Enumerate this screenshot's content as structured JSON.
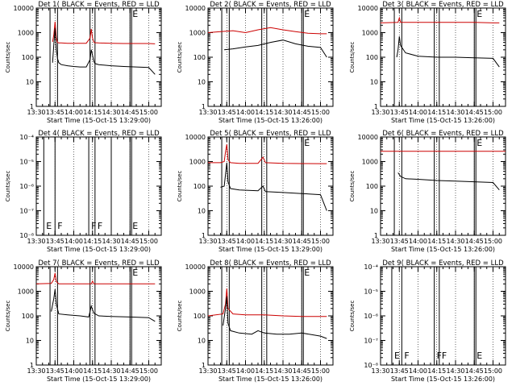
{
  "chart_data": [
    {
      "type": "line",
      "title": "Det 1( BLACK = Events, RED = LLD",
      "xlabel": "Start Time (15-Oct-15 13:29:00)",
      "ylabel": "Counts/sec",
      "xlim": [
        "13:30",
        "15:10"
      ],
      "ylim": [
        1,
        10000
      ],
      "yscale": "log",
      "yticks": [
        "1",
        "10",
        "100",
        "1000",
        "10000"
      ],
      "xticks": [
        "13:30",
        "13:45",
        "14:00",
        "14:15",
        "14:30",
        "14:45",
        "15:00"
      ],
      "markers": [
        {
          "x": "13:41",
          "label": "",
          "double": false
        },
        {
          "x": "13:47",
          "label": "",
          "double": false
        },
        {
          "x": "14:13",
          "label": "",
          "double": false
        },
        {
          "x": "14:17",
          "label": "",
          "double": false
        },
        {
          "x": "14:45",
          "label": "E",
          "double": true
        }
      ],
      "series": [
        {
          "name": "RED = LLD",
          "color": "#cc0000",
          "x": [
            "13:43",
            "13:44",
            "13:45",
            "13:46",
            "13:47",
            "13:48",
            "13:50",
            "13:55",
            "14:00",
            "14:05",
            "14:10",
            "14:13",
            "14:14",
            "14:15",
            "14:16",
            "14:17",
            "14:20",
            "14:30",
            "14:40",
            "14:50",
            "15:00",
            "15:05"
          ],
          "y": [
            420,
            800,
            2800,
            600,
            400,
            380,
            380,
            370,
            370,
            370,
            370,
            600,
            1400,
            600,
            420,
            390,
            380,
            370,
            360,
            360,
            360,
            350
          ]
        },
        {
          "name": "BLACK = Events",
          "color": "#000000",
          "x": [
            "13:43",
            "13:44",
            "13:45",
            "13:46",
            "13:47",
            "13:48",
            "13:50",
            "13:55",
            "14:00",
            "14:05",
            "14:10",
            "14:13",
            "14:14",
            "14:15",
            "14:16",
            "14:17",
            "14:20",
            "14:30",
            "14:40",
            "14:50",
            "15:00",
            "15:05"
          ],
          "y": [
            60,
            300,
            1500,
            200,
            90,
            60,
            50,
            45,
            42,
            40,
            40,
            80,
            200,
            120,
            70,
            55,
            50,
            45,
            42,
            40,
            38,
            20
          ]
        }
      ]
    },
    {
      "type": "line",
      "title": "Det 2( BLACK = Events, RED = LLD",
      "xlabel": "Start Time (15-Oct-15 13:26:00)",
      "ylabel": "Counts/sec",
      "xlim": [
        "13:30",
        "15:10"
      ],
      "ylim": [
        1,
        10000
      ],
      "yscale": "log",
      "yticks": [
        "1",
        "10",
        "100",
        "1000",
        "10000"
      ],
      "xticks": [
        "13:30",
        "13:45",
        "14:00",
        "14:15",
        "14:30",
        "14:45",
        "15:00"
      ],
      "markers": [
        {
          "x": "13:41",
          "label": "",
          "double": false
        },
        {
          "x": "13:47",
          "label": "",
          "double": false
        },
        {
          "x": "14:13",
          "label": "",
          "double": false
        },
        {
          "x": "14:17",
          "label": "",
          "double": false
        },
        {
          "x": "14:45",
          "label": "E",
          "double": true
        }
      ],
      "series": [
        {
          "name": "RED = LLD",
          "color": "#cc0000",
          "x": [
            "13:30",
            "13:40",
            "13:50",
            "14:00",
            "14:10",
            "14:20",
            "14:30",
            "14:40",
            "14:50",
            "15:00",
            "15:05"
          ],
          "y": [
            1000,
            1100,
            1200,
            1000,
            1300,
            1600,
            1300,
            1100,
            950,
            900,
            900
          ]
        },
        {
          "name": "BLACK = Events",
          "color": "#000000",
          "x": [
            "13:43",
            "13:50",
            "14:00",
            "14:10",
            "14:20",
            "14:30",
            "14:40",
            "14:50",
            "15:00",
            "15:05"
          ],
          "y": [
            200,
            220,
            260,
            300,
            400,
            500,
            350,
            280,
            250,
            100
          ]
        }
      ]
    },
    {
      "type": "line",
      "title": "Det 3( BLACK = Events, RED = LLD",
      "xlabel": "Start Time (15-Oct-15 13:26:00)",
      "ylabel": "Counts/sec",
      "xlim": [
        "13:30",
        "15:10"
      ],
      "ylim": [
        1,
        10000
      ],
      "yscale": "log",
      "yticks": [
        "1",
        "10",
        "100",
        "1000",
        "10000"
      ],
      "xticks": [
        "13:30",
        "13:45",
        "14:00",
        "14:15",
        "14:30",
        "14:45",
        "15:00"
      ],
      "markers": [
        {
          "x": "13:41",
          "label": "",
          "double": false
        },
        {
          "x": "13:47",
          "label": "",
          "double": false
        },
        {
          "x": "14:13",
          "label": "",
          "double": false
        },
        {
          "x": "14:17",
          "label": "",
          "double": false
        },
        {
          "x": "14:45",
          "label": "E",
          "double": true
        }
      ],
      "series": [
        {
          "name": "RED = LLD",
          "color": "#cc0000",
          "x": [
            "13:30",
            "13:44",
            "13:45",
            "13:46",
            "14:00",
            "14:15",
            "14:30",
            "14:45",
            "15:00",
            "15:05"
          ],
          "y": [
            2500,
            2600,
            4000,
            2600,
            2600,
            2600,
            2600,
            2600,
            2500,
            2500
          ]
        },
        {
          "name": "BLACK = Events",
          "color": "#000000",
          "x": [
            "13:43",
            "13:44",
            "13:45",
            "13:46",
            "13:50",
            "14:00",
            "14:15",
            "14:30",
            "14:45",
            "15:00",
            "15:05"
          ],
          "y": [
            100,
            200,
            700,
            300,
            150,
            110,
            100,
            100,
            95,
            90,
            40
          ]
        }
      ]
    },
    {
      "type": "line",
      "title": "Det 4( BLACK = Events, RED = LLD",
      "xlabel": "Start Time (15-Oct-15 13:29:00)",
      "ylabel": "Counts/sec",
      "xlim": [
        "13:30",
        "15:10"
      ],
      "ylim": [
        1e-08,
        0.0001
      ],
      "yscale": "log",
      "yticks": [
        "10⁻⁸",
        "10⁻⁷",
        "10⁻⁶",
        "10⁻⁵",
        "10⁻⁴"
      ],
      "xticks": [
        "13:30",
        "13:45",
        "14:00",
        "14:15",
        "14:30",
        "14:45",
        "15:00"
      ],
      "markers": [
        {
          "x": "13:36",
          "label": "E",
          "double": false
        },
        {
          "x": "13:45",
          "label": "F",
          "double": false
        },
        {
          "x": "14:12",
          "label": "F",
          "double": false
        },
        {
          "x": "14:17",
          "label": "F",
          "double": false
        },
        {
          "x": "14:30",
          "label": "",
          "double": false
        },
        {
          "x": "14:45",
          "label": "E",
          "double": true
        }
      ],
      "series": []
    },
    {
      "type": "line",
      "title": "Det 5( BLACK = Events, RED = LLD",
      "xlabel": "Start Time (15-Oct-15 13:29:00)",
      "ylabel": "Counts/sec",
      "xlim": [
        "13:30",
        "15:10"
      ],
      "ylim": [
        1,
        10000
      ],
      "yscale": "log",
      "yticks": [
        "1",
        "10",
        "100",
        "1000",
        "10000"
      ],
      "xticks": [
        "13:30",
        "13:45",
        "14:00",
        "14:15",
        "14:30",
        "14:45",
        "15:00"
      ],
      "markers": [
        {
          "x": "13:41",
          "label": "",
          "double": false
        },
        {
          "x": "13:47",
          "label": "",
          "double": false
        },
        {
          "x": "14:13",
          "label": "",
          "double": false
        },
        {
          "x": "14:17",
          "label": "",
          "double": false
        },
        {
          "x": "14:45",
          "label": "E",
          "double": true
        }
      ],
      "series": [
        {
          "name": "RED = LLD",
          "color": "#cc0000",
          "x": [
            "13:30",
            "13:40",
            "13:43",
            "13:44",
            "13:45",
            "13:46",
            "13:48",
            "13:55",
            "14:10",
            "14:14",
            "14:16",
            "14:30",
            "14:45",
            "15:00",
            "15:05"
          ],
          "y": [
            900,
            900,
            1000,
            2500,
            5000,
            1200,
            900,
            850,
            850,
            1500,
            900,
            850,
            830,
            820,
            820
          ]
        },
        {
          "name": "BLACK = Events",
          "color": "#000000",
          "x": [
            "13:40",
            "13:43",
            "13:44",
            "13:45",
            "13:46",
            "13:48",
            "13:55",
            "14:10",
            "14:14",
            "14:16",
            "14:30",
            "14:45",
            "15:00",
            "15:05"
          ],
          "y": [
            90,
            100,
            300,
            900,
            150,
            80,
            70,
            65,
            100,
            60,
            55,
            50,
            45,
            10
          ]
        }
      ]
    },
    {
      "type": "line",
      "title": "Det 6( BLACK = Events, RED = LLD",
      "xlabel": "Start Time (15-Oct-15 13:26:00)",
      "ylabel": "Counts/sec",
      "xlim": [
        "13:30",
        "15:10"
      ],
      "ylim": [
        1,
        10000
      ],
      "yscale": "log",
      "yticks": [
        "1",
        "10",
        "100",
        "1000",
        "10000"
      ],
      "xticks": [
        "13:30",
        "13:45",
        "14:00",
        "14:15",
        "14:30",
        "14:45",
        "15:00"
      ],
      "markers": [
        {
          "x": "13:41",
          "label": "",
          "double": false
        },
        {
          "x": "13:47",
          "label": "",
          "double": false
        },
        {
          "x": "14:13",
          "label": "",
          "double": false
        },
        {
          "x": "14:17",
          "label": "",
          "double": false
        },
        {
          "x": "14:45",
          "label": "E",
          "double": true
        }
      ],
      "series": [
        {
          "name": "RED = LLD",
          "color": "#cc0000",
          "x": [
            "13:30",
            "14:00",
            "14:30",
            "15:00",
            "15:10"
          ],
          "y": [
            2600,
            2600,
            2600,
            2600,
            2600
          ]
        },
        {
          "name": "BLACK = Events",
          "color": "#000000",
          "x": [
            "13:44",
            "13:46",
            "13:50",
            "14:00",
            "14:15",
            "14:30",
            "14:45",
            "15:00",
            "15:05"
          ],
          "y": [
            350,
            250,
            200,
            190,
            170,
            160,
            150,
            140,
            70
          ]
        }
      ]
    },
    {
      "type": "line",
      "title": "Det 7( BLACK = Events, RED = LLD",
      "xlabel": "Start Time (15-Oct-15 13:29:00)",
      "ylabel": "Counts/sec",
      "xlim": [
        "13:30",
        "15:10"
      ],
      "ylim": [
        1,
        10000
      ],
      "yscale": "log",
      "yticks": [
        "1",
        "10",
        "100",
        "1000",
        "10000"
      ],
      "xticks": [
        "13:30",
        "13:45",
        "14:00",
        "14:15",
        "14:30",
        "14:45",
        "15:00"
      ],
      "markers": [
        {
          "x": "13:41",
          "label": "",
          "double": false
        },
        {
          "x": "13:47",
          "label": "",
          "double": false
        },
        {
          "x": "14:13",
          "label": "",
          "double": false
        },
        {
          "x": "14:17",
          "label": "",
          "double": false
        },
        {
          "x": "14:45",
          "label": "E",
          "double": true
        }
      ],
      "series": [
        {
          "name": "RED = LLD",
          "color": "#cc0000",
          "x": [
            "13:30",
            "13:42",
            "13:44",
            "13:45",
            "13:46",
            "13:48",
            "14:00",
            "14:14",
            "14:15",
            "14:16",
            "14:30",
            "14:45",
            "15:00",
            "15:05"
          ],
          "y": [
            2000,
            2100,
            3000,
            5500,
            2500,
            2000,
            2000,
            2000,
            2600,
            2000,
            2000,
            2000,
            2000,
            2000
          ]
        },
        {
          "name": "BLACK = Events",
          "color": "#000000",
          "x": [
            "13:42",
            "13:44",
            "13:45",
            "13:46",
            "13:48",
            "13:55",
            "14:05",
            "14:12",
            "14:14",
            "14:16",
            "14:20",
            "14:30",
            "14:45",
            "15:00",
            "15:05"
          ],
          "y": [
            150,
            500,
            1200,
            300,
            120,
            110,
            100,
            90,
            250,
            130,
            100,
            95,
            90,
            85,
            60
          ]
        }
      ]
    },
    {
      "type": "line",
      "title": "Det 8( BLACK = Events, RED = LLD",
      "xlabel": "Start Time (15-Oct-15 13:26:00)",
      "ylabel": "Counts/sec",
      "xlim": [
        "13:30",
        "15:10"
      ],
      "ylim": [
        1,
        10000
      ],
      "yscale": "log",
      "yticks": [
        "1",
        "10",
        "100",
        "1000",
        "10000"
      ],
      "xticks": [
        "13:30",
        "13:45",
        "14:00",
        "14:15",
        "14:30",
        "14:45",
        "15:00"
      ],
      "markers": [
        {
          "x": "13:41",
          "label": "",
          "double": false
        },
        {
          "x": "13:47",
          "label": "",
          "double": false
        },
        {
          "x": "14:13",
          "label": "",
          "double": false
        },
        {
          "x": "14:17",
          "label": "",
          "double": false
        },
        {
          "x": "14:45",
          "label": "E",
          "double": true
        }
      ],
      "series": [
        {
          "name": "RED = LLD",
          "color": "#cc0000",
          "x": [
            "13:30",
            "13:42",
            "13:44",
            "13:45",
            "13:46",
            "13:50",
            "14:00",
            "14:15",
            "14:30",
            "14:45",
            "15:00",
            "15:05"
          ],
          "y": [
            100,
            120,
            300,
            1300,
            200,
            120,
            110,
            110,
            100,
            95,
            95,
            95
          ]
        },
        {
          "name": "BLACK = Events",
          "color": "#000000",
          "x": [
            "13:42",
            "13:44",
            "13:45",
            "13:46",
            "13:48",
            "13:55",
            "14:05",
            "14:10",
            "14:15",
            "14:25",
            "14:35",
            "14:45",
            "15:00",
            "15:05"
          ],
          "y": [
            40,
            200,
            600,
            50,
            25,
            20,
            18,
            25,
            20,
            18,
            18,
            20,
            15,
            12
          ]
        }
      ]
    },
    {
      "type": "line",
      "title": "Det 9( BLACK = Events, RED = LLD",
      "xlabel": "Start Time (15-Oct-15 13:26:00)",
      "ylabel": "Counts/sec",
      "xlim": [
        "13:30",
        "15:10"
      ],
      "ylim": [
        1e-08,
        0.0001
      ],
      "yscale": "log",
      "yticks": [
        "10⁻⁸",
        "10⁻⁷",
        "10⁻⁶",
        "10⁻⁵",
        "10⁻⁴"
      ],
      "xticks": [
        "13:30",
        "13:45",
        "14:00",
        "14:15",
        "14:30",
        "14:45",
        "15:00"
      ],
      "markers": [
        {
          "x": "13:39",
          "label": "E",
          "double": false
        },
        {
          "x": "13:47",
          "label": "F",
          "double": false
        },
        {
          "x": "14:13",
          "label": "F",
          "double": false
        },
        {
          "x": "14:17",
          "label": "F",
          "double": false
        },
        {
          "x": "14:45",
          "label": "E",
          "double": true
        }
      ],
      "series": []
    }
  ]
}
